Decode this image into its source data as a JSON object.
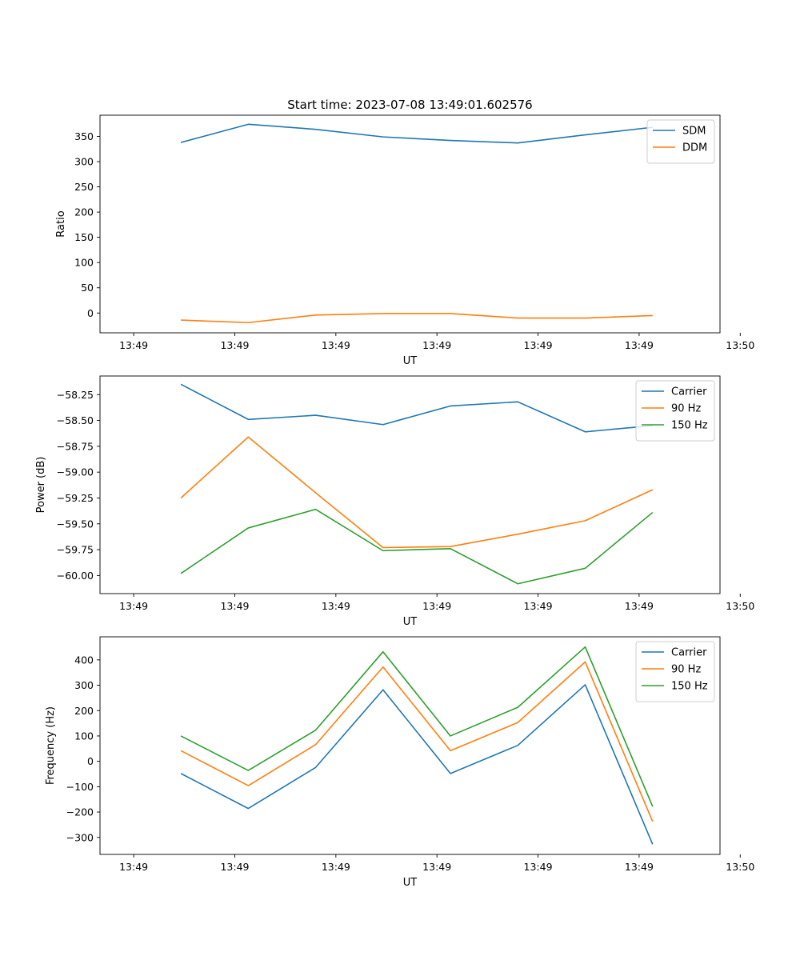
{
  "title": "Start time: 2023-07-08 13:49:01.602576",
  "chart_data": [
    {
      "type": "line",
      "ylabel": "Ratio",
      "xlabel": "UT",
      "ylim": [
        -39.2,
        392.0
      ],
      "yticks": [
        0,
        50,
        100,
        150,
        200,
        250,
        300,
        350
      ],
      "yticklabels": [
        "0",
        "50",
        "100",
        "150",
        "200",
        "250",
        "300",
        "350"
      ],
      "xlim": [
        -0.5,
        8.7
      ],
      "xticks": [
        0,
        1.5,
        3,
        4.5,
        6,
        7.5,
        9
      ],
      "xticklabels": [
        "13:49",
        "13:49",
        "13:49",
        "13:49",
        "13:49",
        "13:49",
        "13:50"
      ],
      "x": [
        0.7,
        1.7,
        2.7,
        3.7,
        4.7,
        5.7,
        6.7,
        7.7
      ],
      "legend_position": "upper-right",
      "series": [
        {
          "name": "SDM",
          "color": "#1f77b4",
          "values": [
            338,
            374,
            364,
            349,
            342,
            337,
            353,
            368
          ]
        },
        {
          "name": "DDM",
          "color": "#ff7f0e",
          "values": [
            -14,
            -19,
            -4,
            -1,
            -1,
            -10,
            -10,
            -5
          ]
        }
      ]
    },
    {
      "type": "line",
      "ylabel": "Power (dB)",
      "xlabel": "UT",
      "ylim": [
        -60.175,
        -58.07
      ],
      "yticks": [
        -60.0,
        -59.75,
        -59.5,
        -59.25,
        -59.0,
        -58.75,
        -58.5,
        -58.25
      ],
      "yticklabels": [
        "−60.00",
        "−59.75",
        "−59.50",
        "−59.25",
        "−59.00",
        "−58.75",
        "−58.50",
        "−58.25"
      ],
      "xlim": [
        -0.5,
        8.7
      ],
      "xticks": [
        0,
        1.5,
        3,
        4.5,
        6,
        7.5,
        9
      ],
      "xticklabels": [
        "13:49",
        "13:49",
        "13:49",
        "13:49",
        "13:49",
        "13:49",
        "13:50"
      ],
      "x": [
        0.7,
        1.7,
        2.7,
        3.7,
        4.7,
        5.7,
        6.7,
        7.7
      ],
      "legend_position": "upper-right",
      "series": [
        {
          "name": "Carrier",
          "color": "#1f77b4",
          "values": [
            -58.15,
            -58.49,
            -58.45,
            -58.54,
            -58.36,
            -58.32,
            -58.61,
            -58.55
          ]
        },
        {
          "name": "90 Hz",
          "color": "#ff7f0e",
          "values": [
            -59.25,
            -58.66,
            -59.2,
            -59.73,
            -59.72,
            -59.6,
            -59.47,
            -59.17
          ]
        },
        {
          "name": "150 Hz",
          "color": "#2ca02c",
          "values": [
            -59.98,
            -59.54,
            -59.36,
            -59.76,
            -59.74,
            -60.08,
            -59.93,
            -59.39
          ]
        }
      ]
    },
    {
      "type": "line",
      "ylabel": "Frequency (Hz)",
      "xlabel": "UT",
      "ylim": [
        -367,
        491
      ],
      "yticks": [
        -300,
        -200,
        -100,
        0,
        100,
        200,
        300,
        400
      ],
      "yticklabels": [
        "−300",
        "−200",
        "−100",
        "0",
        "100",
        "200",
        "300",
        "400"
      ],
      "xlim": [
        -0.5,
        8.7
      ],
      "xticks": [
        0,
        1.5,
        3,
        4.5,
        6,
        7.5,
        9
      ],
      "xticklabels": [
        "13:49",
        "13:49",
        "13:49",
        "13:49",
        "13:49",
        "13:49",
        "13:50"
      ],
      "x": [
        0.7,
        1.7,
        2.7,
        3.7,
        4.7,
        5.7,
        6.7,
        7.7
      ],
      "legend_position": "upper-right",
      "series": [
        {
          "name": "Carrier",
          "color": "#1f77b4",
          "values": [
            -48,
            -186,
            -24,
            282,
            -48,
            63,
            302,
            -327
          ]
        },
        {
          "name": "90 Hz",
          "color": "#ff7f0e",
          "values": [
            42,
            -96,
            66,
            372,
            42,
            153,
            392,
            -237
          ]
        },
        {
          "name": "150 Hz",
          "color": "#2ca02c",
          "values": [
            100,
            -36,
            123,
            432,
            100,
            213,
            451,
            -178
          ]
        }
      ]
    }
  ]
}
